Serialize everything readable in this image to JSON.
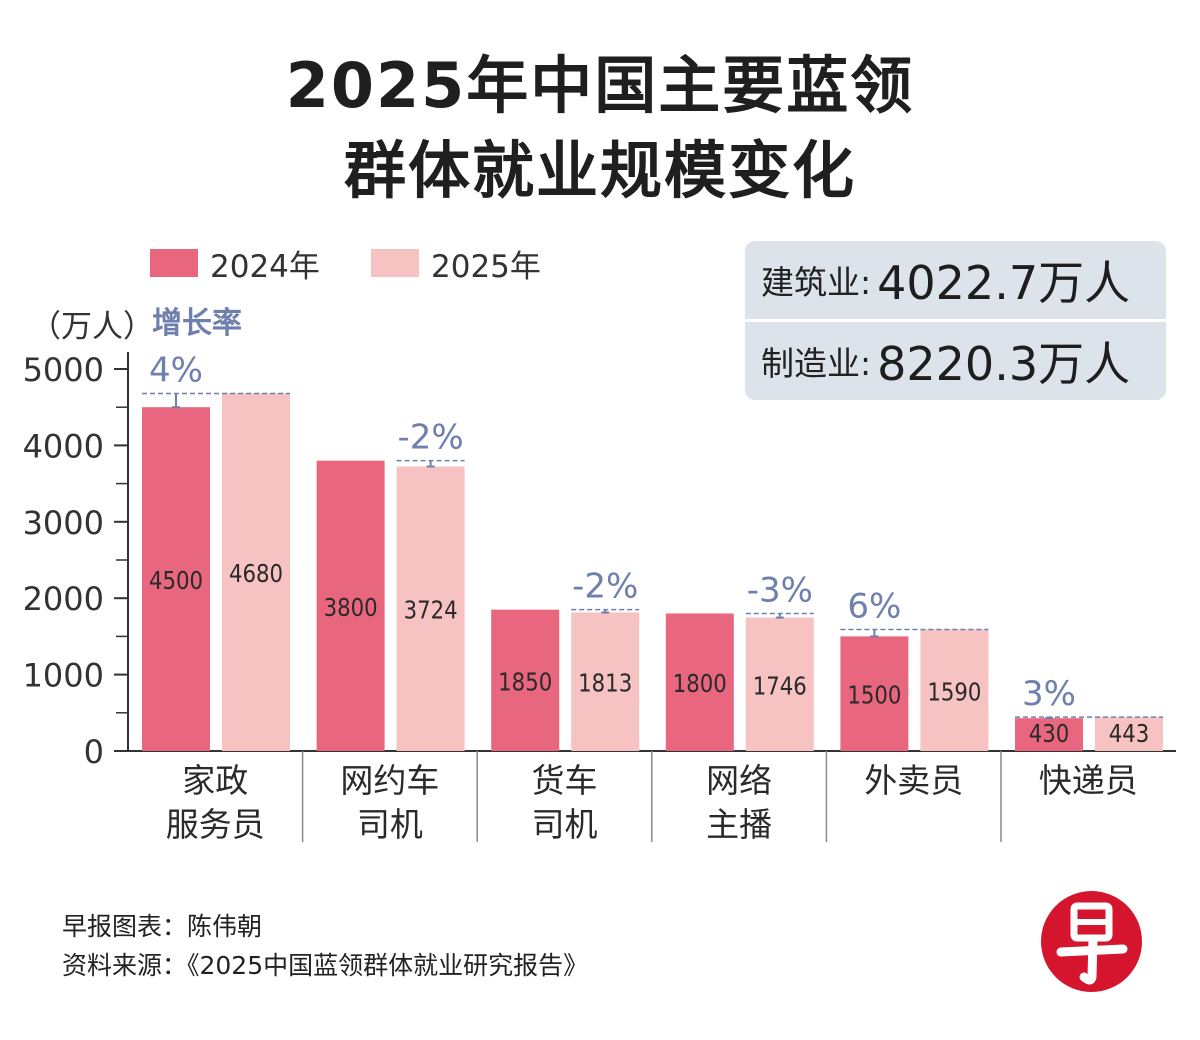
{
  "title_lines": [
    "2025年中国主要蓝领",
    "群体就业规模变化"
  ],
  "info_box": [
    {
      "label": "建筑业:",
      "value": "4022.7万人"
    },
    {
      "label": "制造业:",
      "value": "8220.3万人"
    }
  ],
  "footer": {
    "credit": "早报图表：陈伟朝",
    "source": "资料来源：《2025中国蓝领群体就业研究报告》"
  },
  "logo": {
    "text": "早",
    "color": "#d5152d"
  },
  "chart_data": {
    "type": "bar",
    "title": "2025年中国主要蓝领群体就业规模变化",
    "ylabel": "（万人）",
    "growth_label": "增长率",
    "ylim": [
      0,
      5000
    ],
    "yticks": [
      0,
      1000,
      2000,
      3000,
      4000,
      5000
    ],
    "grid": false,
    "legend_position": "top-left",
    "categories": [
      [
        "家政",
        "服务员"
      ],
      [
        "网约车",
        "司机"
      ],
      [
        "货车",
        "司机"
      ],
      [
        "网络",
        "主播"
      ],
      [
        "外卖员"
      ],
      [
        "快递员"
      ]
    ],
    "series": [
      {
        "name": "2024年",
        "color": "#e8677f",
        "values": [
          4500,
          3800,
          1850,
          1800,
          1500,
          430
        ]
      },
      {
        "name": "2025年",
        "color": "#f7c3c2",
        "values": [
          4680,
          3724,
          1813,
          1746,
          1590,
          443
        ]
      }
    ],
    "growth_rates": [
      "4%",
      "-2%",
      "-2%",
      "-3%",
      "6%",
      "3%"
    ],
    "colors": {
      "growth": "#6f7fae",
      "axis": "#333333"
    }
  }
}
